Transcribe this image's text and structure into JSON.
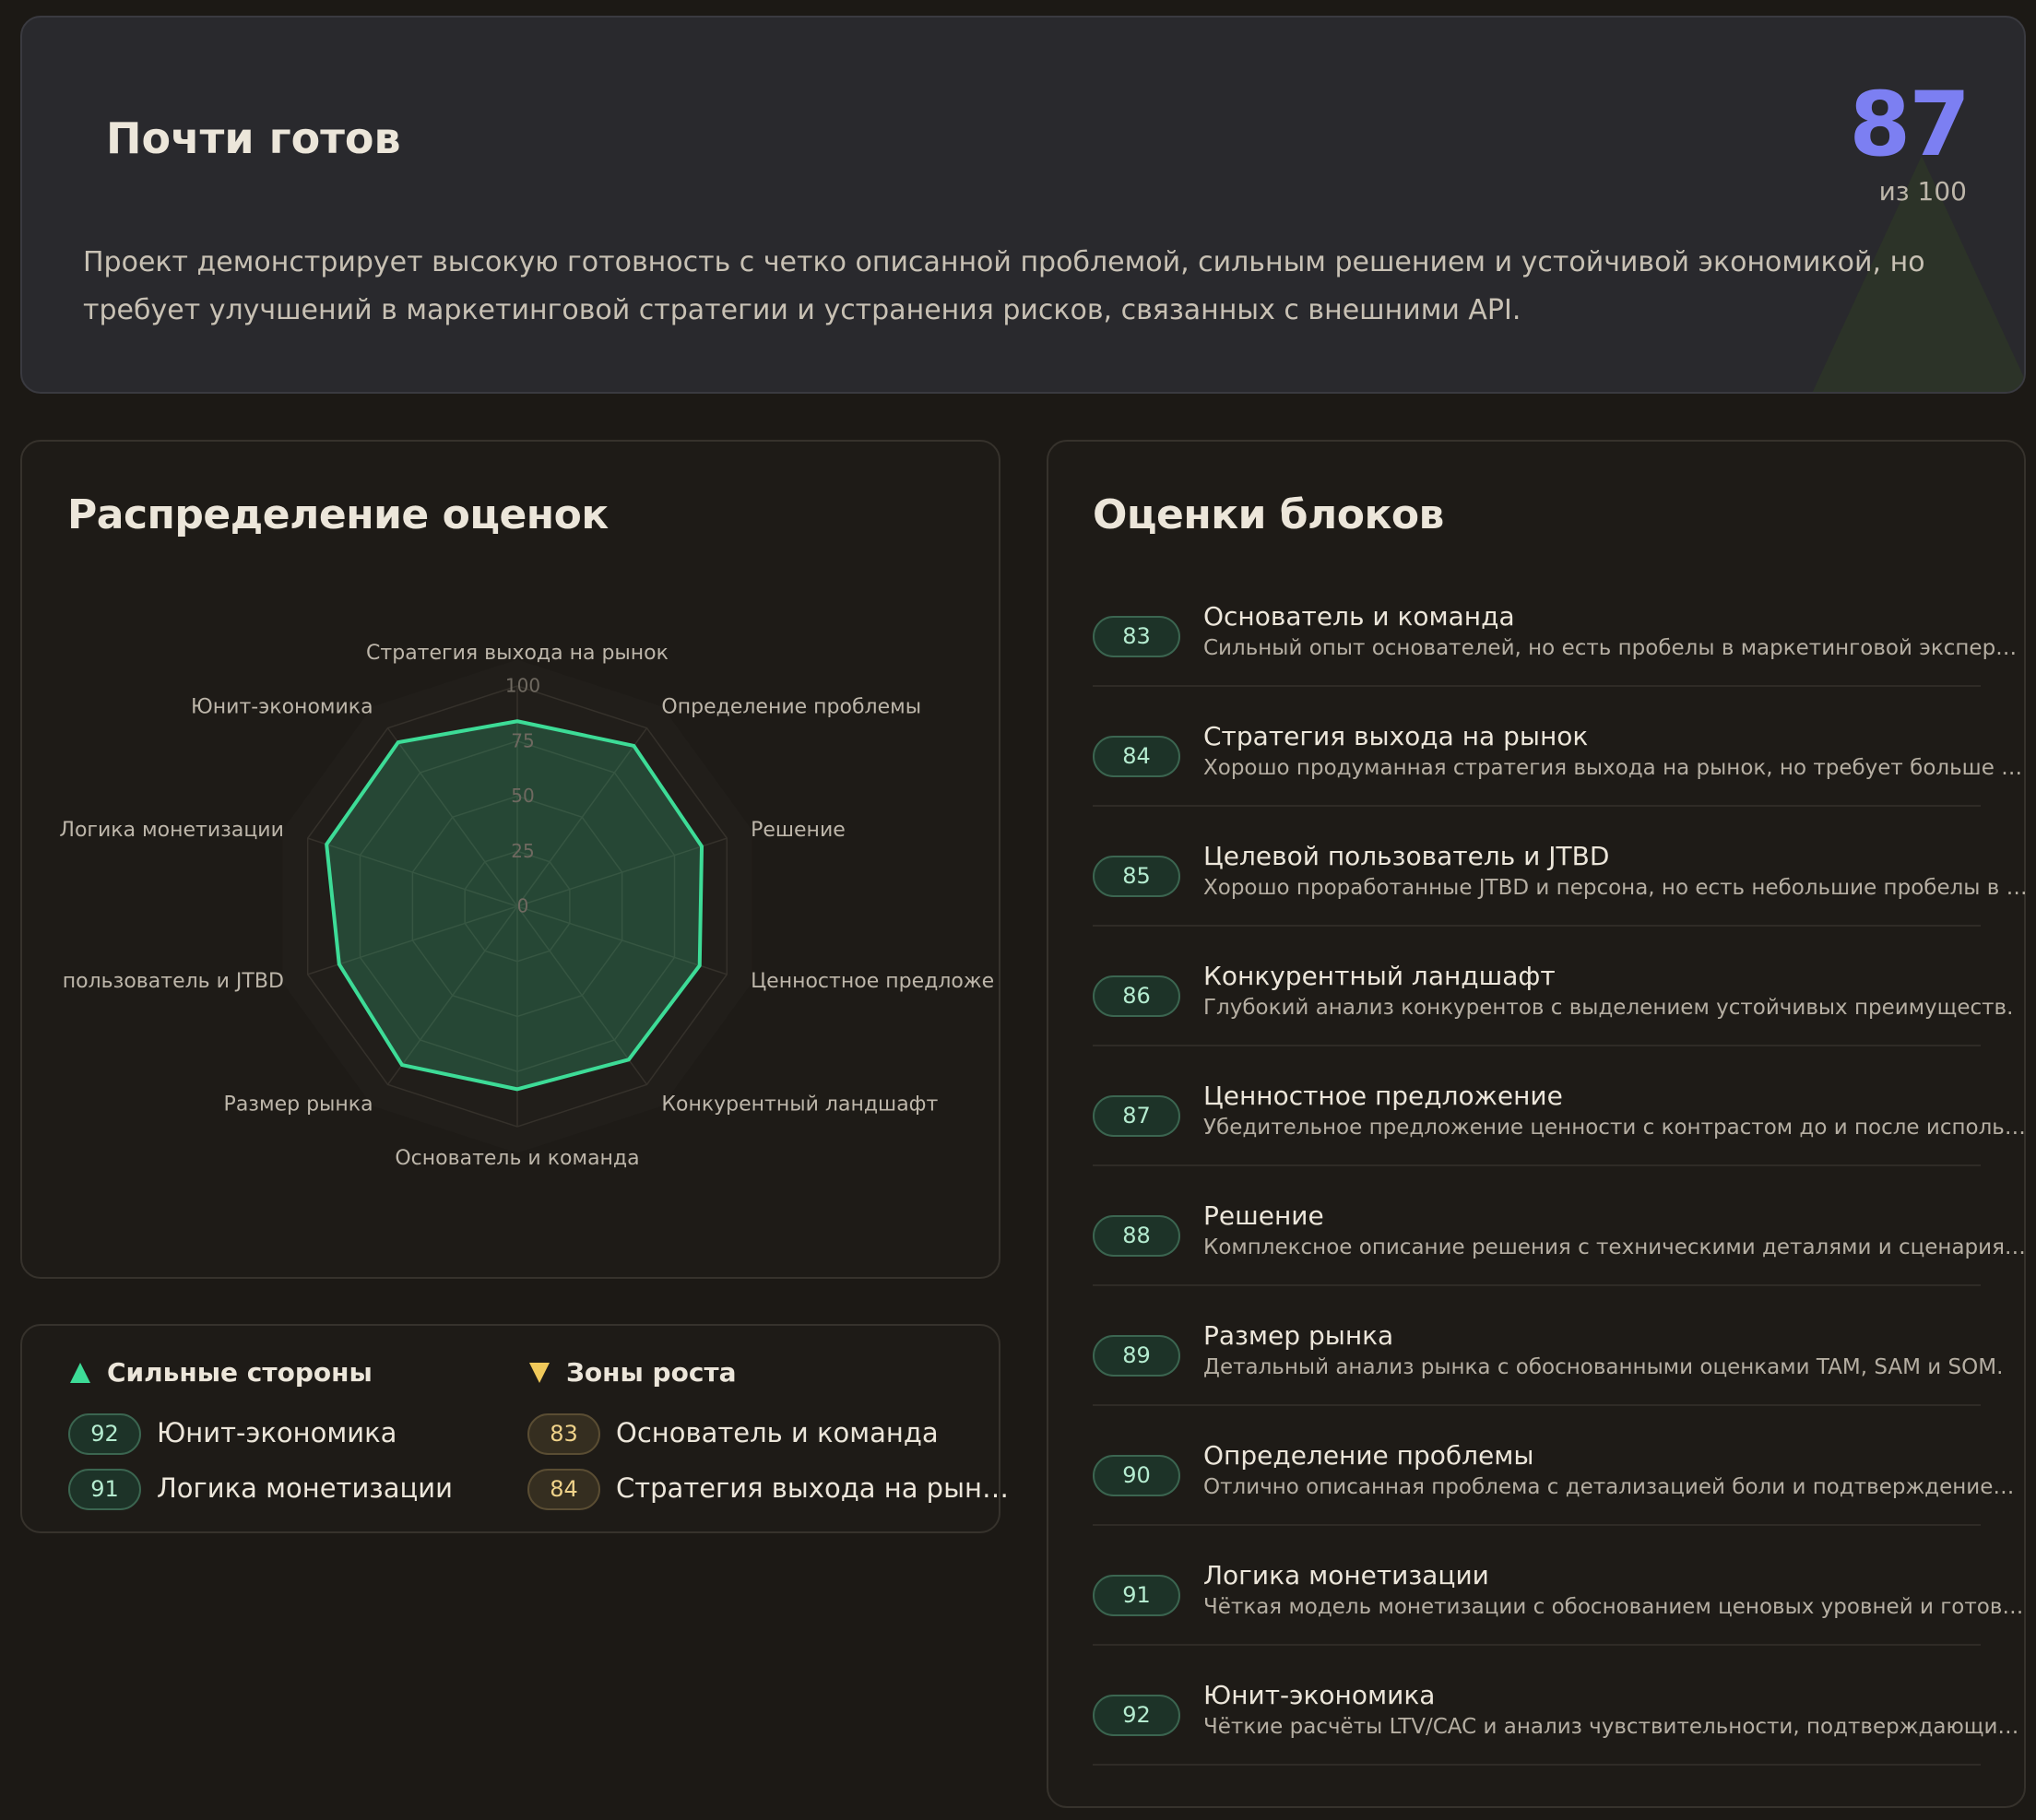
{
  "header": {
    "title": "Почти готов",
    "score": 87,
    "score_caption": "из 100",
    "description": "Проект демонстрирует высокую готовность с четко описанной проблемой, сильным решением и устойчивой экономикой, но требует улучшений в маркетинговой стратегии и устранения рисков, связанных с внешними API."
  },
  "chart_data": {
    "type": "radar",
    "title": "Распределение оценок",
    "categories": [
      "Стратегия выхода на рынок",
      "Определение проблемы",
      "Решение",
      "Ценностное предложе",
      "Конкурентный ландшафт",
      "Основатель и команда",
      "Размер рынка",
      "пользователь и JTBD",
      "Логика монетизации",
      "Юнит-экономика"
    ],
    "values": [
      84,
      90,
      88,
      87,
      86,
      83,
      89,
      85,
      91,
      92
    ],
    "color": "#3ddc97",
    "ylim": [
      0,
      100
    ],
    "yticks": [
      0,
      25,
      50,
      75,
      100
    ],
    "grid": true
  },
  "highlights": {
    "strengths": {
      "title": "Сильные стороны",
      "items": [
        {
          "score": 92,
          "label": "Юнит-экономика"
        },
        {
          "score": 91,
          "label": "Логика монетизации"
        }
      ]
    },
    "growth": {
      "title": "Зоны роста",
      "items": [
        {
          "score": 83,
          "label": "Основатель и команда"
        },
        {
          "score": 84,
          "label": "Стратегия выхода на рын…"
        }
      ]
    }
  },
  "blocks": {
    "title": "Оценки блоков",
    "items": [
      {
        "score": 83,
        "title": "Основатель и команда",
        "description": "Сильный опыт основателей, но есть пробелы в маркетинговой экспер…"
      },
      {
        "score": 84,
        "title": "Стратегия выхода на рынок",
        "description": "Хорошо продуманная стратегия выхода на рынок, но требует больше …"
      },
      {
        "score": 85,
        "title": "Целевой пользователь и JTBD",
        "description": "Хорошо проработанные JTBD и персона, но есть небольшие пробелы в …"
      },
      {
        "score": 86,
        "title": "Конкурентный ландшафт",
        "description": "Глубокий анализ конкурентов с выделением устойчивых преимуществ."
      },
      {
        "score": 87,
        "title": "Ценностное предложение",
        "description": "Убедительное предложение ценности с контрастом до и после исполь…"
      },
      {
        "score": 88,
        "title": "Решение",
        "description": "Комплексное описание решения с техническими деталями и сценария…"
      },
      {
        "score": 89,
        "title": "Размер рынка",
        "description": "Детальный анализ рынка с обоснованными оценками TAM, SAM и SOM."
      },
      {
        "score": 90,
        "title": "Определение проблемы",
        "description": "Отлично описанная проблема с детализацией боли и подтверждение…"
      },
      {
        "score": 91,
        "title": "Логика монетизации",
        "description": "Чёткая модель монетизации с обоснованием ценовых уровней и готов…"
      },
      {
        "score": 92,
        "title": "Юнит-экономика",
        "description": "Чёткие расчёты LTV/CAC и анализ чувствительности, подтверждающи…"
      }
    ]
  }
}
